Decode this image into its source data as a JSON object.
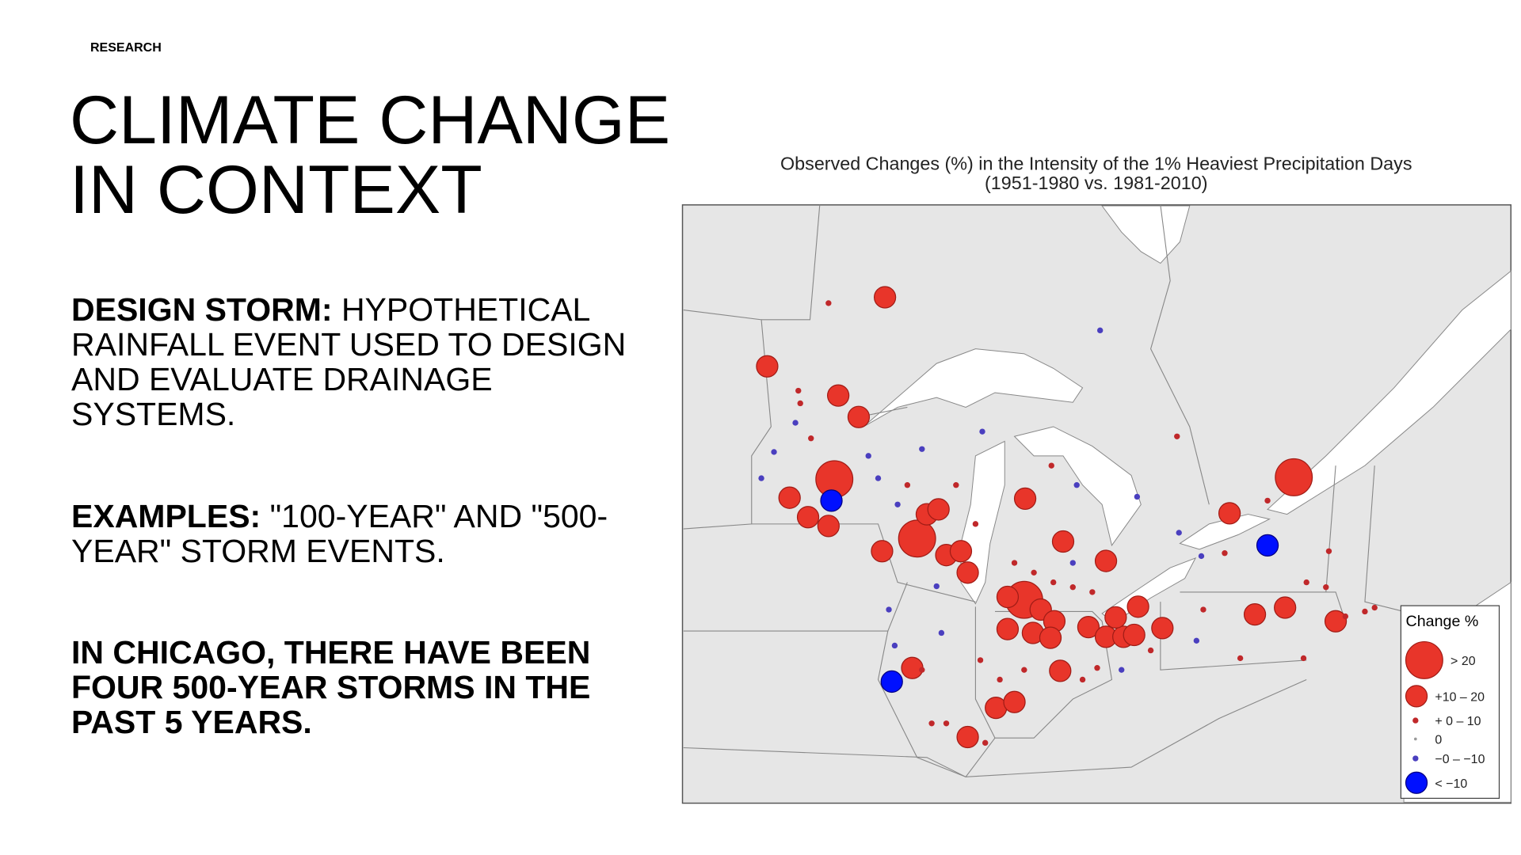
{
  "header": {
    "section": "RESEARCH",
    "title_lines": [
      "CLIMATE CHANGE",
      "IN CONTEXT"
    ]
  },
  "paragraphs": [
    {
      "lead": "DESIGN STORM:",
      "text": "HYPOTHETICAL RAINFALL EVENT USED TO DESIGN AND EVALUATE DRAINAGE SYSTEMS."
    },
    {
      "lead": "EXAMPLES:",
      "text": "\"100-YEAR\" AND \"500-YEAR\" STORM EVENTS."
    },
    {
      "text": "IN CHICAGO, THERE HAVE BEEN FOUR 500-YEAR STORMS IN THE PAST 5 YEARS."
    }
  ],
  "map": {
    "title_lines": [
      "Observed Changes (%) in the Intensity of the 1% Heaviest Precipitation Days",
      "(1951-1980 vs. 1981-2010)"
    ],
    "legend": {
      "title": "Change %",
      "items": [
        "> 20",
        "+10 – 20",
        "+ 0 – 10",
        "0",
        "−0 – −10",
        "< −10"
      ]
    }
  }
}
